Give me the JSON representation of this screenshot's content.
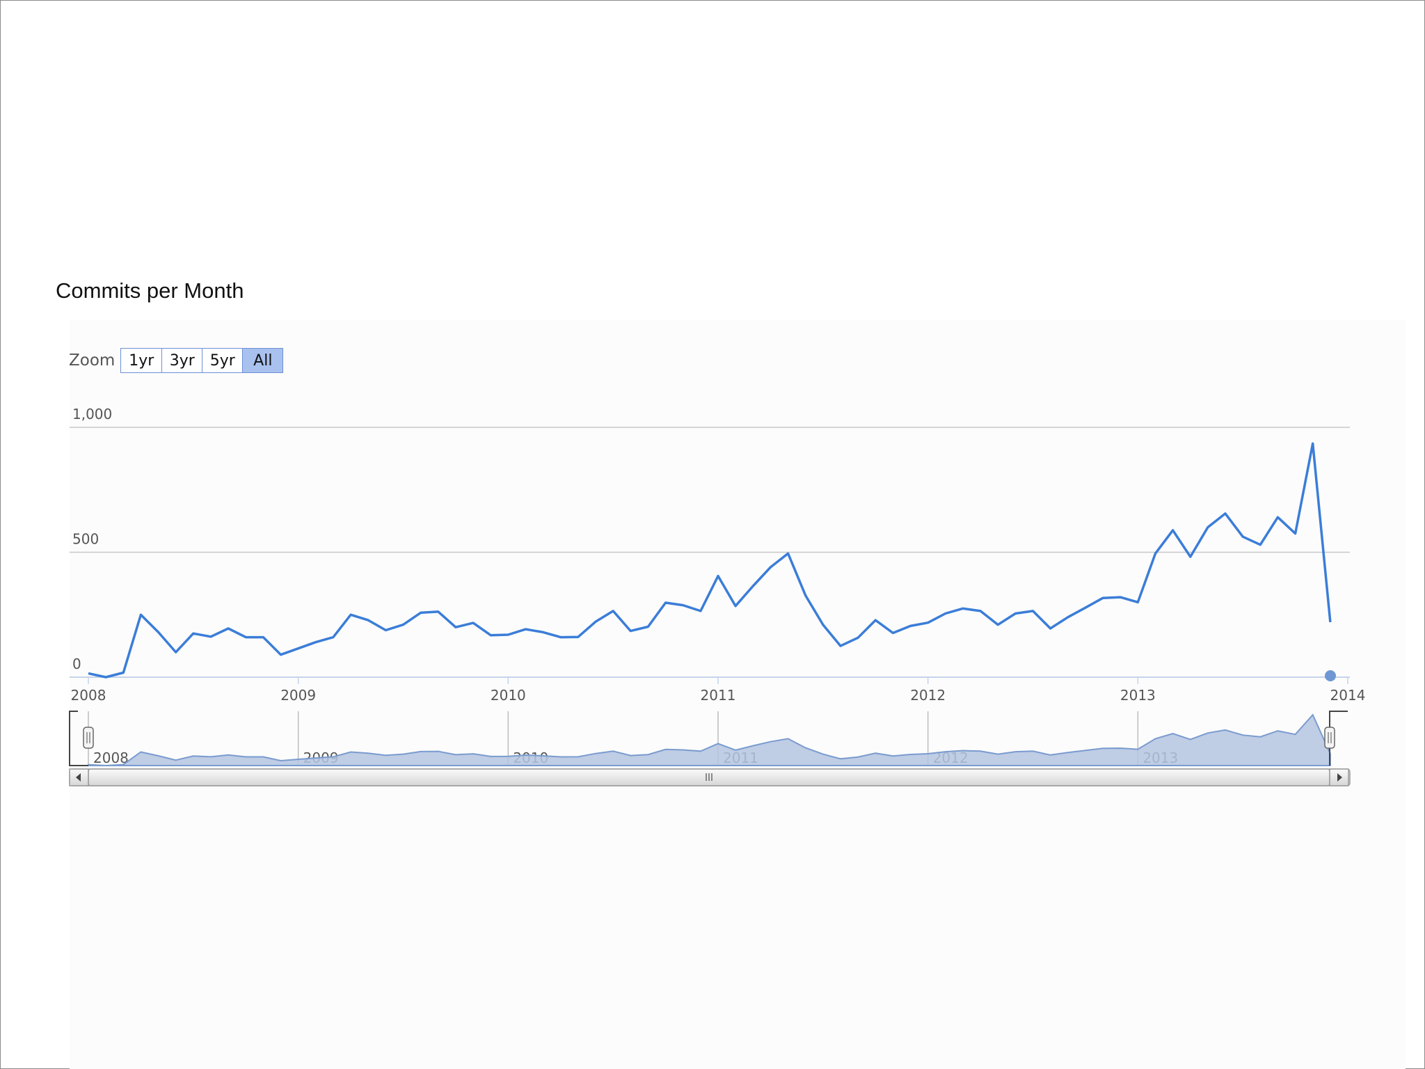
{
  "chart_data": {
    "type": "line",
    "title": "Commits per Month",
    "xlabel": "",
    "ylabel": "",
    "ylim": [
      0,
      1000
    ],
    "xlim": [
      "2008-01",
      "2014-01"
    ],
    "y_ticks": [
      {
        "value": 0,
        "label": "0"
      },
      {
        "value": 500,
        "label": "500"
      },
      {
        "value": 1000,
        "label": "1,000"
      }
    ],
    "x_ticks": [
      {
        "date": "2008-01",
        "label": "2008"
      },
      {
        "date": "2009-01",
        "label": "2009"
      },
      {
        "date": "2010-01",
        "label": "2010"
      },
      {
        "date": "2011-01",
        "label": "2011"
      },
      {
        "date": "2012-01",
        "label": "2012"
      },
      {
        "date": "2013-01",
        "label": "2013"
      },
      {
        "date": "2014-01",
        "label": "2014"
      }
    ],
    "navigator_ticks": [
      {
        "date": "2008-01",
        "label": "2008"
      },
      {
        "date": "2009-01",
        "label": "2009"
      },
      {
        "date": "2010-01",
        "label": "2010"
      },
      {
        "date": "2011-01",
        "label": "2011"
      },
      {
        "date": "2012-01",
        "label": "2012"
      },
      {
        "date": "2013-01",
        "label": "2013"
      }
    ],
    "grid": true,
    "legend": "none",
    "colors": {
      "line": "#3b7dd8",
      "navigator_fill": "#b4c4e0",
      "navigator_line": "#7a9bcf",
      "gridline": "#c8c8c8",
      "end_marker": "#6f97d3"
    },
    "series": [
      {
        "x": [
          "2008-01",
          "2008-02",
          "2008-03",
          "2008-04",
          "2008-05",
          "2008-06",
          "2008-07",
          "2008-08",
          "2008-09",
          "2008-10",
          "2008-11",
          "2008-12",
          "2009-01",
          "2009-02",
          "2009-03",
          "2009-04",
          "2009-05",
          "2009-06",
          "2009-07",
          "2009-08",
          "2009-09",
          "2009-10",
          "2009-11",
          "2009-12",
          "2010-01",
          "2010-02",
          "2010-03",
          "2010-04",
          "2010-05",
          "2010-06",
          "2010-07",
          "2010-08",
          "2010-09",
          "2010-10",
          "2010-11",
          "2010-12",
          "2011-01",
          "2011-02",
          "2011-03",
          "2011-04",
          "2011-05",
          "2011-06",
          "2011-07",
          "2011-08",
          "2011-09",
          "2011-10",
          "2011-11",
          "2011-12",
          "2012-01",
          "2012-02",
          "2012-03",
          "2012-04",
          "2012-05",
          "2012-06",
          "2012-07",
          "2012-08",
          "2012-09",
          "2012-10",
          "2012-11",
          "2012-12",
          "2013-01",
          "2013-02",
          "2013-03",
          "2013-04",
          "2013-05",
          "2013-06",
          "2013-07",
          "2013-08",
          "2013-09",
          "2013-10",
          "2013-11",
          "2013-12"
        ],
        "values": [
          15,
          0,
          18,
          250,
          180,
          100,
          175,
          162,
          195,
          160,
          160,
          90,
          115,
          140,
          160,
          250,
          228,
          188,
          210,
          258,
          262,
          200,
          217,
          168,
          170,
          192,
          180,
          160,
          161,
          222,
          265,
          185,
          202,
          298,
          288,
          265,
          405,
          285,
          365,
          440,
          495,
          327,
          210,
          125,
          158,
          228,
          177,
          205,
          218,
          255,
          275,
          265,
          210,
          255,
          265,
          195,
          240,
          278,
          317,
          320,
          300,
          495,
          588,
          482,
          600,
          655,
          562,
          530,
          640,
          575,
          935,
          220
        ]
      }
    ]
  }
}
